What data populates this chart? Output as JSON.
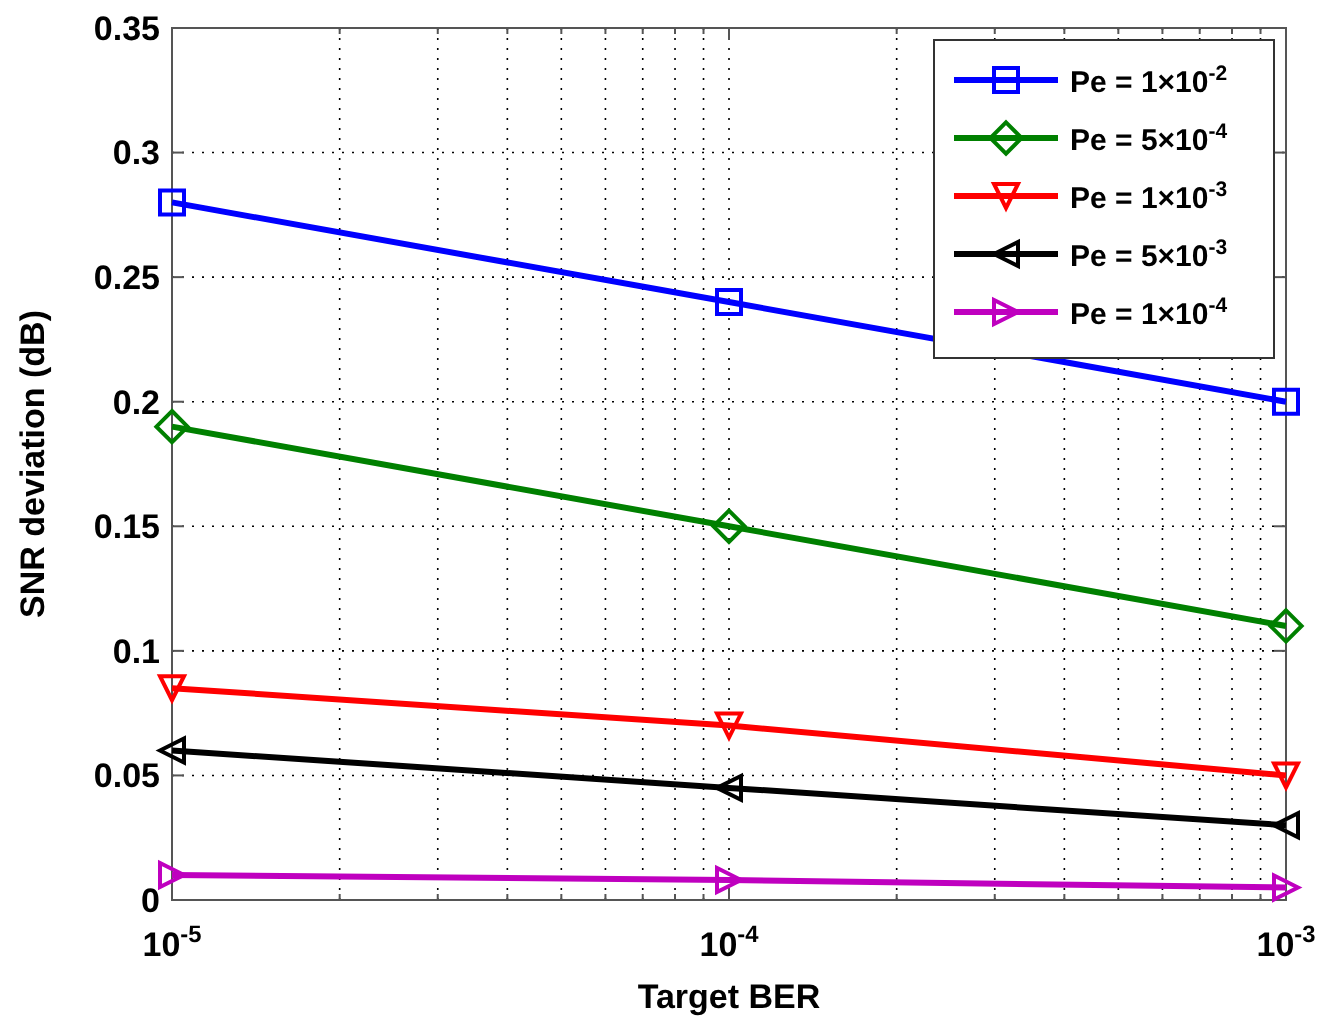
{
  "chart_data": {
    "type": "line",
    "xlabel": "Target BER",
    "ylabel": "SNR deviation (dB)",
    "log": "x",
    "x": [
      1e-05,
      0.0001,
      0.001
    ],
    "xlim": [
      1e-05,
      0.001
    ],
    "xticks": [
      {
        "value": 1e-05,
        "label": "10$^{-5}$"
      },
      {
        "value": 0.0001,
        "label": "10$^{-4}$"
      },
      {
        "value": 0.001,
        "label": "10$^{-3}$"
      }
    ],
    "ylim": [
      0,
      0.35
    ],
    "yticks": [
      0,
      0.05,
      0.1,
      0.15,
      0.2,
      0.25,
      0.3,
      0.35
    ],
    "grid": true,
    "legend": "top right",
    "line_style": "solid",
    "series": [
      {
        "name": "Pe = 1×10$^{-2}$",
        "color": "#0000ff",
        "marker": "square",
        "values": [
          0.28,
          0.24,
          0.2
        ]
      },
      {
        "name": "Pe = 5×10$^{-4}$",
        "color": "#008000",
        "marker": "diamond",
        "values": [
          0.19,
          0.15,
          0.11
        ]
      },
      {
        "name": "Pe = 1×10$^{-3}$",
        "color": "#ff0000",
        "marker": "triangle-down",
        "values": [
          0.085,
          0.07,
          0.05
        ]
      },
      {
        "name": "Pe = 5×10$^{-3}$",
        "color": "#000000",
        "marker": "triangle-left",
        "values": [
          0.06,
          0.045,
          0.03
        ]
      },
      {
        "name": "Pe = 1×10$^{-4}$",
        "color": "#bf00bf",
        "marker": "triangle-right",
        "values": [
          0.01,
          0.008,
          0.005
        ]
      }
    ]
  }
}
